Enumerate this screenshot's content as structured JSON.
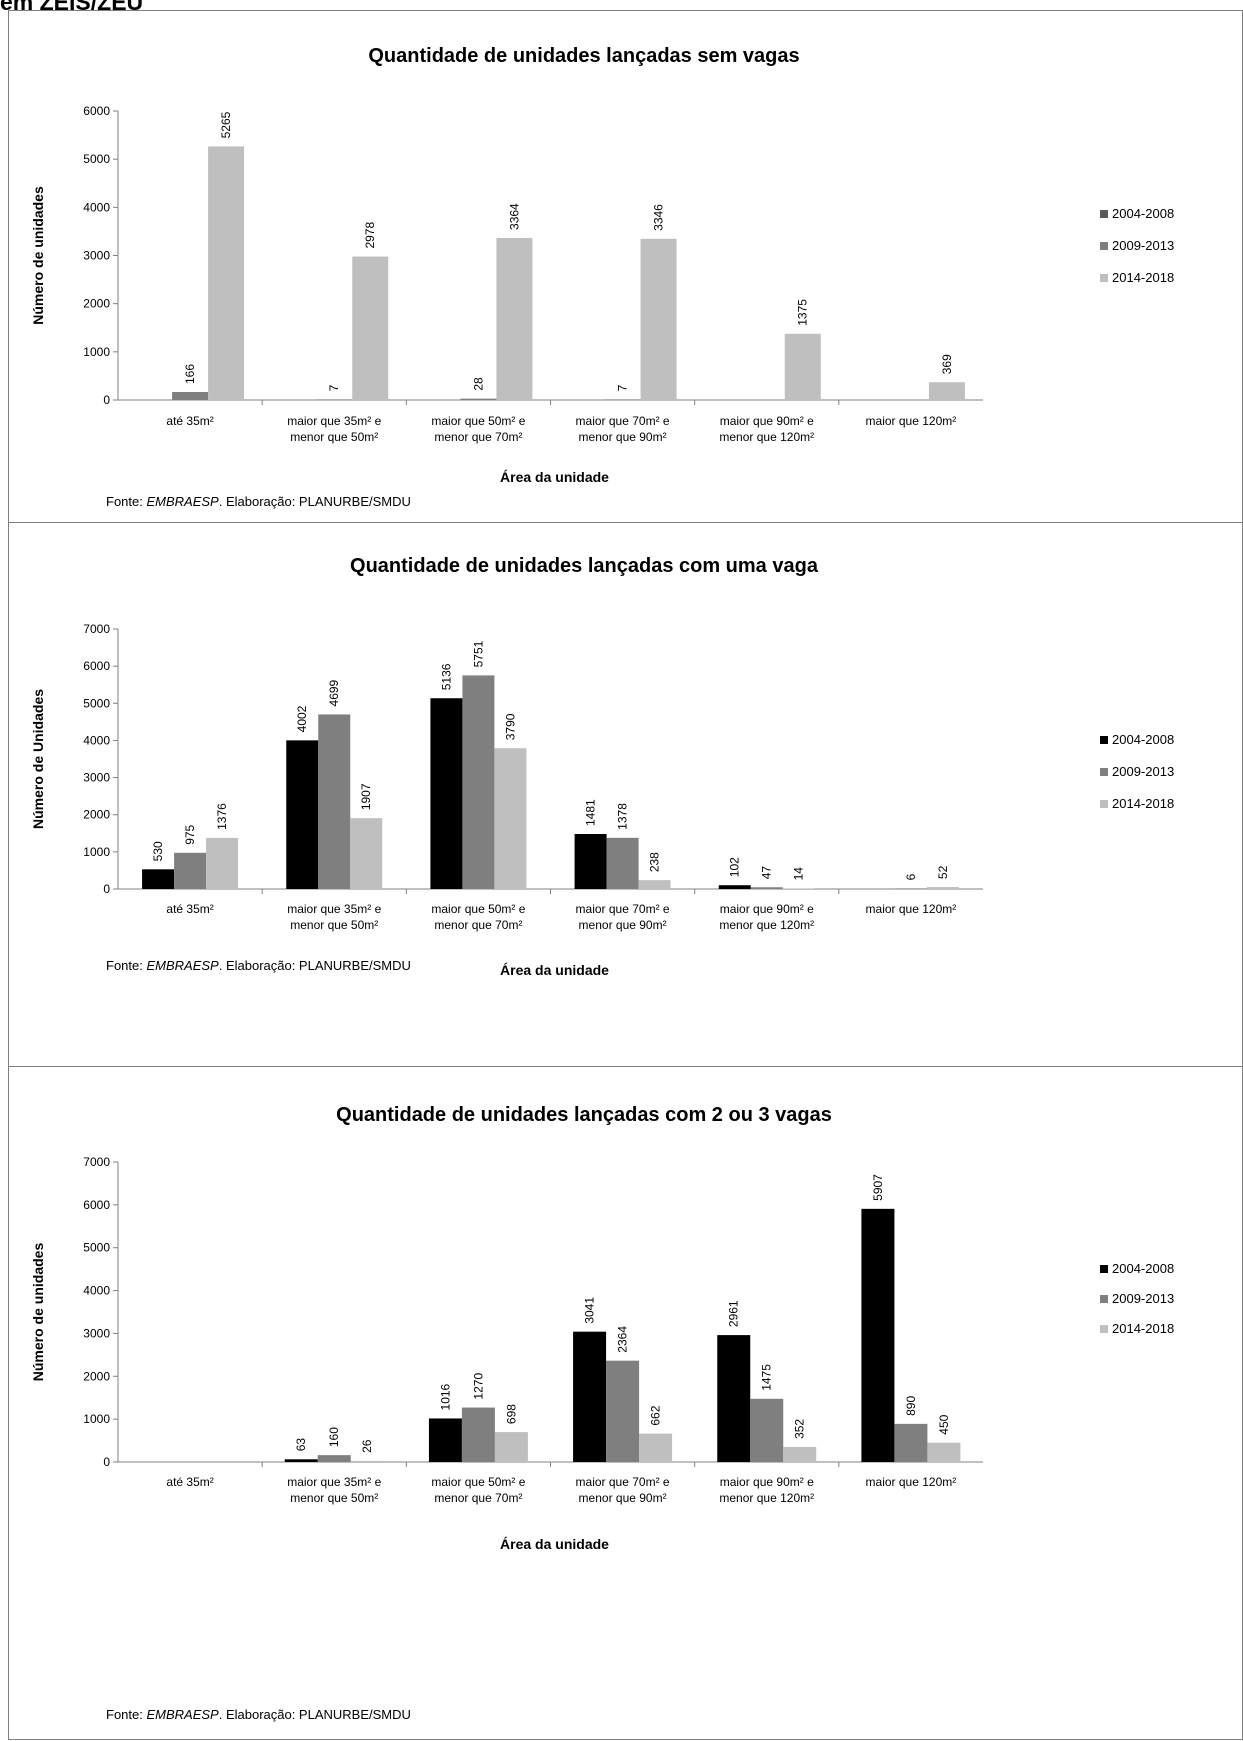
{
  "header_fragment": "em ZEIS/ZEU",
  "source": {
    "prefix": "Fonte: ",
    "name": "EMBRAESP",
    "suffix": ". Elaboração: PLANURBE/SMDU"
  },
  "colors": {
    "2004-2008": "#000000",
    "2009-2013": "#7f7f7f",
    "2014-2018": "#bfbfbf",
    "first_chart_2004-2008": "#595959"
  },
  "chart_data": [
    {
      "type": "bar",
      "title": "Quantidade de unidades lançadas sem vagas",
      "xlabel": "Área da unidade",
      "ylabel": "Número de unidades",
      "ylim": [
        0,
        6000
      ],
      "yticks": [
        0,
        1000,
        2000,
        3000,
        4000,
        5000,
        6000
      ],
      "categories": [
        [
          "até 35m²"
        ],
        [
          "maior que 35m² e",
          "menor que 50m²"
        ],
        [
          "maior que 50m² e",
          "menor que 70m²"
        ],
        [
          "maior que 70m² e",
          "menor que 90m²"
        ],
        [
          "maior que 90m² e",
          "menor que 120m²"
        ],
        [
          "maior que 120m²"
        ]
      ],
      "legend_position": "right",
      "series": [
        {
          "name": "2004-2008",
          "values": [
            null,
            null,
            null,
            null,
            null,
            null
          ],
          "color": "#595959"
        },
        {
          "name": "2009-2013",
          "values": [
            166,
            7,
            28,
            7,
            null,
            null
          ],
          "color": "#7f7f7f"
        },
        {
          "name": "2014-2018",
          "values": [
            5265,
            2978,
            3364,
            3346,
            1375,
            369
          ],
          "color": "#bfbfbf"
        }
      ]
    },
    {
      "type": "bar",
      "title": "Quantidade de unidades lançadas com uma vaga",
      "xlabel": "Área da unidade",
      "ylabel": "Número de Unidades",
      "ylim": [
        0,
        7000
      ],
      "yticks": [
        0,
        1000,
        2000,
        3000,
        4000,
        5000,
        6000,
        7000
      ],
      "categories": [
        [
          "até 35m²"
        ],
        [
          "maior que 35m² e",
          "menor que 50m²"
        ],
        [
          "maior que 50m² e",
          "menor que 70m²"
        ],
        [
          "maior que 70m² e",
          "menor que 90m²"
        ],
        [
          "maior que 90m² e",
          "menor que 120m²"
        ],
        [
          "maior que 120m²"
        ]
      ],
      "legend_position": "right",
      "series": [
        {
          "name": "2004-2008",
          "values": [
            530,
            4002,
            5136,
            1481,
            102,
            null
          ],
          "color": "#000000"
        },
        {
          "name": "2009-2013",
          "values": [
            975,
            4699,
            5751,
            1378,
            47,
            6
          ],
          "color": "#7f7f7f"
        },
        {
          "name": "2014-2018",
          "values": [
            1376,
            1907,
            3790,
            238,
            14,
            52
          ],
          "color": "#bfbfbf"
        }
      ]
    },
    {
      "type": "bar",
      "title": "Quantidade de unidades lançadas com 2 ou 3 vagas",
      "xlabel": "Área da unidade",
      "ylabel": "Número de unidades",
      "ylim": [
        0,
        7000
      ],
      "yticks": [
        0,
        1000,
        2000,
        3000,
        4000,
        5000,
        6000,
        7000
      ],
      "categories": [
        [
          "até 35m²"
        ],
        [
          "maior que 35m² e",
          "menor que 50m²"
        ],
        [
          "maior que 50m² e",
          "menor que 70m²"
        ],
        [
          "maior que 70m² e",
          "menor que 90m²"
        ],
        [
          "maior que 90m² e",
          "menor que 120m²"
        ],
        [
          "maior que 120m²"
        ]
      ],
      "legend_position": "right",
      "series": [
        {
          "name": "2004-2008",
          "values": [
            null,
            63,
            1016,
            3041,
            2961,
            5907
          ],
          "color": "#000000"
        },
        {
          "name": "2009-2013",
          "values": [
            null,
            160,
            1270,
            2364,
            1475,
            890
          ],
          "color": "#7f7f7f"
        },
        {
          "name": "2014-2018",
          "values": [
            null,
            26,
            698,
            662,
            352,
            450
          ],
          "color": "#bfbfbf"
        }
      ]
    }
  ]
}
